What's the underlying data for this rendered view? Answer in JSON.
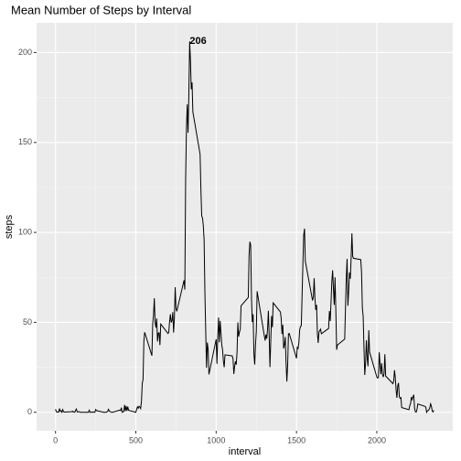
{
  "chart_data": {
    "type": "line",
    "title": "Mean Number of Steps by Interval",
    "xlabel": "interval",
    "ylabel": "steps",
    "x": [
      0,
      5,
      10,
      15,
      20,
      25,
      30,
      35,
      40,
      45,
      50,
      55,
      100,
      105,
      110,
      115,
      120,
      125,
      130,
      135,
      140,
      145,
      150,
      155,
      200,
      205,
      210,
      215,
      220,
      225,
      230,
      235,
      240,
      245,
      250,
      255,
      300,
      305,
      310,
      315,
      320,
      325,
      330,
      335,
      340,
      345,
      350,
      355,
      400,
      405,
      410,
      415,
      420,
      425,
      430,
      435,
      440,
      445,
      450,
      455,
      500,
      505,
      510,
      515,
      520,
      525,
      530,
      535,
      540,
      545,
      550,
      555,
      600,
      605,
      610,
      615,
      620,
      625,
      630,
      635,
      640,
      645,
      650,
      655,
      700,
      705,
      710,
      715,
      720,
      725,
      730,
      735,
      740,
      745,
      750,
      755,
      800,
      805,
      810,
      815,
      820,
      825,
      830,
      835,
      840,
      845,
      850,
      855,
      900,
      905,
      910,
      915,
      920,
      925,
      930,
      935,
      940,
      945,
      950,
      955,
      1000,
      1005,
      1010,
      1015,
      1020,
      1025,
      1030,
      1035,
      1040,
      1045,
      1050,
      1055,
      1100,
      1105,
      1110,
      1115,
      1120,
      1125,
      1130,
      1135,
      1140,
      1145,
      1150,
      1155,
      1200,
      1205,
      1210,
      1215,
      1220,
      1225,
      1230,
      1235,
      1240,
      1245,
      1250,
      1255,
      1300,
      1305,
      1310,
      1315,
      1320,
      1325,
      1330,
      1335,
      1340,
      1345,
      1350,
      1355,
      1400,
      1405,
      1410,
      1415,
      1420,
      1425,
      1430,
      1435,
      1440,
      1445,
      1450,
      1455,
      1500,
      1505,
      1510,
      1515,
      1520,
      1525,
      1530,
      1535,
      1540,
      1545,
      1550,
      1555,
      1600,
      1605,
      1610,
      1615,
      1620,
      1625,
      1630,
      1635,
      1640,
      1645,
      1650,
      1655,
      1700,
      1705,
      1710,
      1715,
      1720,
      1725,
      1730,
      1735,
      1740,
      1745,
      1750,
      1755,
      1800,
      1805,
      1810,
      1815,
      1820,
      1825,
      1830,
      1835,
      1840,
      1845,
      1850,
      1855,
      1900,
      1905,
      1910,
      1915,
      1920,
      1925,
      1930,
      1935,
      1940,
      1945,
      1950,
      1955,
      2000,
      2005,
      2010,
      2015,
      2020,
      2025,
      2030,
      2035,
      2040,
      2045,
      2050,
      2055,
      2100,
      2105,
      2110,
      2115,
      2120,
      2125,
      2130,
      2135,
      2140,
      2145,
      2150,
      2155,
      2200,
      2205,
      2210,
      2215,
      2220,
      2225,
      2230,
      2235,
      2240,
      2245,
      2250,
      2255,
      2300,
      2305,
      2310,
      2315,
      2320,
      2325,
      2330,
      2335,
      2340,
      2345,
      2350,
      2355
    ],
    "values": [
      1.72,
      0.34,
      0.13,
      0.15,
      0.08,
      2.09,
      0.53,
      0.87,
      0,
      1.47,
      0.3,
      0.13,
      0.32,
      0.68,
      0.15,
      0.34,
      0,
      1.11,
      1.83,
      0.17,
      0.17,
      0.38,
      0.26,
      0,
      0,
      0,
      1.13,
      0,
      0,
      0.13,
      0,
      0.23,
      0,
      0,
      1.55,
      0.94,
      0,
      0,
      0,
      0,
      0.21,
      0.62,
      1.62,
      0.58,
      0.49,
      0.08,
      0,
      0,
      1.19,
      0.94,
      2.57,
      0,
      0.34,
      0.36,
      4.11,
      0.66,
      3.49,
      0.83,
      3.11,
      1.11,
      0,
      1.57,
      3,
      2.25,
      3.32,
      2.96,
      2.09,
      6.06,
      16.02,
      18.34,
      39.45,
      44.49,
      31.49,
      49.26,
      53.77,
      63.45,
      49.96,
      47.08,
      52.15,
      39.34,
      44.02,
      44.17,
      37.36,
      49.04,
      43.81,
      44.38,
      50.51,
      54.51,
      49.92,
      50.98,
      55.68,
      44.32,
      52.26,
      69.55,
      57.85,
      56.15,
      73.38,
      68.21,
      129.43,
      157.53,
      171.15,
      155.4,
      177.3,
      206.17,
      195.92,
      179.57,
      183.4,
      167.02,
      143.45,
      124.04,
      109.11,
      108.11,
      103.72,
      95.96,
      66.21,
      45.23,
      24.79,
      38.75,
      34.98,
      21.06,
      40.57,
      26.98,
      42.42,
      52.66,
      38.92,
      50.79,
      44.28,
      37.42,
      34.7,
      28.34,
      25.09,
      31.94,
      31.36,
      29.68,
      21.32,
      25.55,
      28.38,
      26.47,
      33.43,
      49.98,
      42.04,
      44.6,
      46.04,
      59.19,
      63.87,
      87.7,
      94.85,
      92.77,
      63.4,
      50.17,
      54.47,
      32.42,
      26.53,
      37.74,
      45.06,
      67.28,
      42.34,
      39.89,
      43.26,
      40.98,
      46.25,
      56.43,
      42.75,
      25.13,
      39.96,
      53.55,
      47.32,
      60.81,
      55.75,
      51.96,
      43.58,
      48.7,
      35.47,
      37.55,
      41.85,
      27.51,
      17.11,
      26.08,
      43.62,
      43.77,
      30.02,
      36.08,
      35.49,
      38.85,
      45.96,
      47.75,
      48.13,
      65.32,
      82.91,
      98.66,
      102.11,
      83.96,
      62.13,
      64.13,
      74.55,
      63.17,
      56.91,
      59.77,
      43.87,
      38.57,
      44.66,
      45.45,
      46.21,
      43.68,
      46.62,
      56.3,
      50.72,
      61.23,
      72.72,
      78.94,
      68.94,
      59.66,
      75.09,
      56.51,
      34.77,
      37.45,
      40.68,
      58.02,
      74.7,
      85.32,
      59.26,
      67.77,
      77.7,
      74.25,
      85.34,
      99.45,
      86.58,
      85.6,
      84.87,
      77.83,
      58.04,
      53.36,
      36.32,
      20.72,
      27.4,
      40.02,
      30.21,
      25.55,
      45.66,
      33.53,
      19.62,
      19.02,
      19.34,
      33.34,
      26.81,
      21.17,
      27.3,
      21.34,
      19.55,
      21.32,
      32.3,
      20.15,
      15.94,
      17.23,
      23.45,
      19.25,
      12.45,
      8.02,
      14.66,
      16.3,
      8.68,
      7.79,
      8.13,
      2.62,
      1.45,
      3.68,
      4.81,
      8.51,
      7.08,
      8.7,
      9.75,
      2.21,
      0.32,
      0.11,
      1.6,
      4.6,
      3.3,
      2.85,
      0,
      0.83,
      0.96,
      1.58,
      2.6,
      4.7,
      3.3,
      0.64,
      0.23,
      1.08
    ],
    "color": "#000000",
    "xlim": [
      -117.75,
      2472.75
    ],
    "xticks": [
      0,
      500,
      1000,
      1500,
      2000
    ],
    "ylim": [
      -10.3,
      216.5
    ],
    "yticks": [
      0,
      50,
      100,
      150,
      200
    ],
    "grid": true,
    "annotations": [
      {
        "text": "206",
        "x": 835,
        "y": 206.17
      }
    ]
  }
}
